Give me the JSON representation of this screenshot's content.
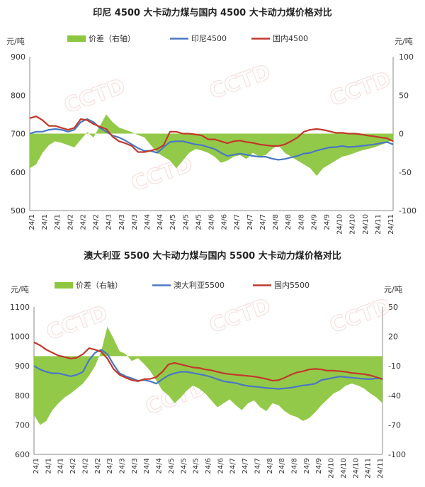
{
  "watermark": "CCTD",
  "colors": {
    "diff": "#8dc63f",
    "import": "#4a78c2",
    "domestic": "#c0392b",
    "axis": "#888888"
  },
  "chart_data": [
    {
      "type": "line",
      "title": "印尼 4500 大卡动力煤与国内 4500 大卡动力煤价格对比",
      "left_unit": "元/吨",
      "right_unit": "元/吨",
      "ylim_left": [
        500,
        900
      ],
      "yticks_left": [
        "900",
        "800",
        "700",
        "600",
        "500"
      ],
      "ylim_right": [
        -100,
        100
      ],
      "yticks_right": [
        "100",
        "50",
        "0",
        "-50",
        "-100"
      ],
      "x_tick_labels": [
        "24/1",
        "24/1",
        "24/1",
        "24/2",
        "24/2",
        "24/2",
        "24/3",
        "24/3",
        "24/3",
        "24/4",
        "24/4",
        "24/5",
        "24/5",
        "24/5",
        "24/6",
        "24/6",
        "24/7",
        "24/7",
        "24/7",
        "24/8",
        "24/8",
        "24/8",
        "24/9",
        "24/9",
        "24/10",
        "24/10",
        "24/10",
        "24/11",
        "24/11"
      ],
      "series": [
        {
          "name": "价差（右轴）",
          "kind": "area",
          "axis": "right",
          "values": [
            -45,
            -40,
            -25,
            -15,
            -10,
            -12,
            -15,
            -18,
            -8,
            2,
            -5,
            10,
            25,
            15,
            8,
            5,
            2,
            -2,
            -5,
            -15,
            -25,
            -30,
            -35,
            -45,
            -35,
            -25,
            -20,
            -22,
            -25,
            -30,
            -38,
            -35,
            -30,
            -28,
            -33,
            -25,
            -30,
            -28,
            -20,
            -15,
            -25,
            -30,
            -35,
            -40,
            -45,
            -55,
            -45,
            -40,
            -35,
            -30,
            -28,
            -25,
            -22,
            -20,
            -18,
            -15,
            -12,
            -8
          ]
        },
        {
          "name": "印尼4500",
          "kind": "line",
          "axis": "left",
          "values": [
            700,
            705,
            705,
            710,
            712,
            710,
            705,
            710,
            730,
            738,
            730,
            715,
            705,
            695,
            690,
            682,
            672,
            662,
            655,
            655,
            650,
            665,
            678,
            680,
            680,
            676,
            672,
            670,
            665,
            660,
            650,
            642,
            645,
            648,
            645,
            642,
            640,
            640,
            635,
            632,
            634,
            638,
            642,
            648,
            650,
            656,
            660,
            664,
            665,
            668,
            665,
            666,
            668,
            670,
            672,
            675,
            678,
            672
          ]
        },
        {
          "name": "国内4500",
          "kind": "line",
          "axis": "left",
          "values": [
            740,
            745,
            735,
            720,
            720,
            715,
            710,
            715,
            738,
            735,
            725,
            718,
            712,
            692,
            680,
            675,
            668,
            652,
            652,
            656,
            660,
            670,
            705,
            705,
            700,
            700,
            698,
            695,
            685,
            685,
            680,
            675,
            680,
            682,
            678,
            676,
            672,
            670,
            668,
            668,
            672,
            680,
            690,
            705,
            710,
            712,
            710,
            706,
            702,
            702,
            700,
            700,
            698,
            695,
            693,
            690,
            688,
            680
          ]
        }
      ]
    },
    {
      "type": "line",
      "title": "澳大利亚 5500 大卡动力煤与国内 5500 大卡动力煤价格对比",
      "left_unit": "元/吨",
      "right_unit": "元/吨",
      "ylim_left": [
        600,
        1100
      ],
      "yticks_left": [
        "1100",
        "1000",
        "900",
        "800",
        "700",
        "600"
      ],
      "ylim_right": [
        -100,
        50
      ],
      "yticks_right": [
        "50",
        "20",
        "-10",
        "-40",
        "-70",
        "-100"
      ],
      "x_tick_labels": [
        "24/1",
        "24/1",
        "24/1",
        "24/2",
        "24/2",
        "24/2",
        "24/3",
        "24/3",
        "24/3",
        "24/4",
        "24/4",
        "24/5",
        "24/5",
        "24/5",
        "24/6",
        "24/6",
        "24/7",
        "24/7",
        "24/7",
        "24/8",
        "24/8",
        "24/8",
        "24/9",
        "24/9",
        "24/10",
        "24/10",
        "24/10",
        "24/11",
        "24/11"
      ],
      "series": [
        {
          "name": "价差（右轴）",
          "kind": "area",
          "axis": "right",
          "values": [
            -60,
            -70,
            -66,
            -55,
            -48,
            -42,
            -38,
            -33,
            -28,
            -20,
            -10,
            5,
            30,
            18,
            5,
            2,
            -5,
            -2,
            -8,
            -15,
            -25,
            -35,
            -40,
            -48,
            -42,
            -35,
            -30,
            -33,
            -38,
            -45,
            -52,
            -48,
            -44,
            -50,
            -55,
            -48,
            -45,
            -52,
            -56,
            -48,
            -50,
            -56,
            -60,
            -62,
            -66,
            -63,
            -57,
            -50,
            -44,
            -38,
            -35,
            -30,
            -28,
            -30,
            -33,
            -38,
            -42,
            -48
          ]
        },
        {
          "name": "澳大利亚5500",
          "kind": "line",
          "axis": "left",
          "values": [
            900,
            888,
            880,
            875,
            875,
            870,
            865,
            870,
            880,
            920,
            945,
            955,
            940,
            905,
            875,
            865,
            858,
            850,
            852,
            848,
            840,
            855,
            868,
            875,
            880,
            880,
            876,
            872,
            868,
            862,
            855,
            848,
            845,
            842,
            836,
            832,
            830,
            828,
            825,
            824,
            822,
            824,
            826,
            830,
            834,
            836,
            840,
            852,
            856,
            860,
            864,
            862,
            860,
            858,
            856,
            855,
            858,
            857
          ]
        },
        {
          "name": "国内5500",
          "kind": "line",
          "axis": "left",
          "values": [
            980,
            970,
            955,
            945,
            935,
            930,
            925,
            928,
            940,
            960,
            955,
            948,
            925,
            890,
            870,
            860,
            852,
            848,
            855,
            856,
            862,
            880,
            905,
            910,
            905,
            900,
            895,
            893,
            888,
            885,
            880,
            875,
            872,
            870,
            868,
            866,
            864,
            860,
            856,
            850,
            852,
            860,
            870,
            878,
            882,
            888,
            890,
            888,
            884,
            884,
            882,
            880,
            876,
            874,
            872,
            868,
            862,
            855
          ]
        }
      ]
    }
  ]
}
